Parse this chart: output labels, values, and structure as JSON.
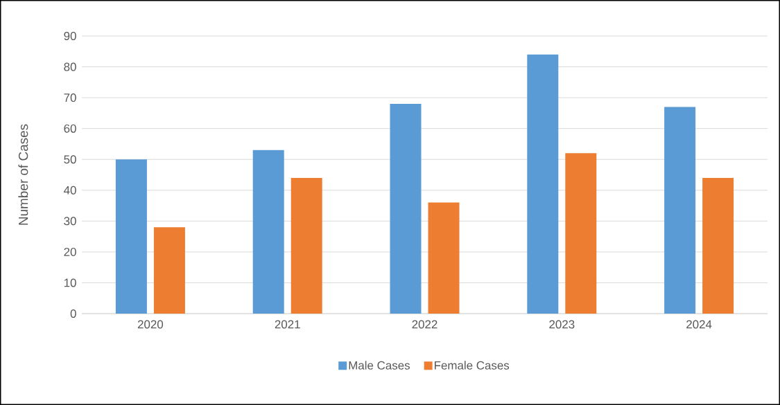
{
  "chart_data": {
    "type": "bar",
    "ylabel": "Number of Cases",
    "categories": [
      "2020",
      "2021",
      "2022",
      "2023",
      "2024"
    ],
    "series": [
      {
        "name": "Male Cases",
        "color": "#5b9bd5",
        "values": [
          50,
          53,
          68,
          84,
          67
        ]
      },
      {
        "name": "Female Cases",
        "color": "#ed7d31",
        "values": [
          28,
          44,
          36,
          52,
          44
        ]
      }
    ],
    "ylim": [
      0,
      90
    ],
    "yticks": [
      0,
      10,
      20,
      30,
      40,
      50,
      60,
      70,
      80,
      90
    ],
    "grid": "y",
    "legend": "bottom"
  }
}
